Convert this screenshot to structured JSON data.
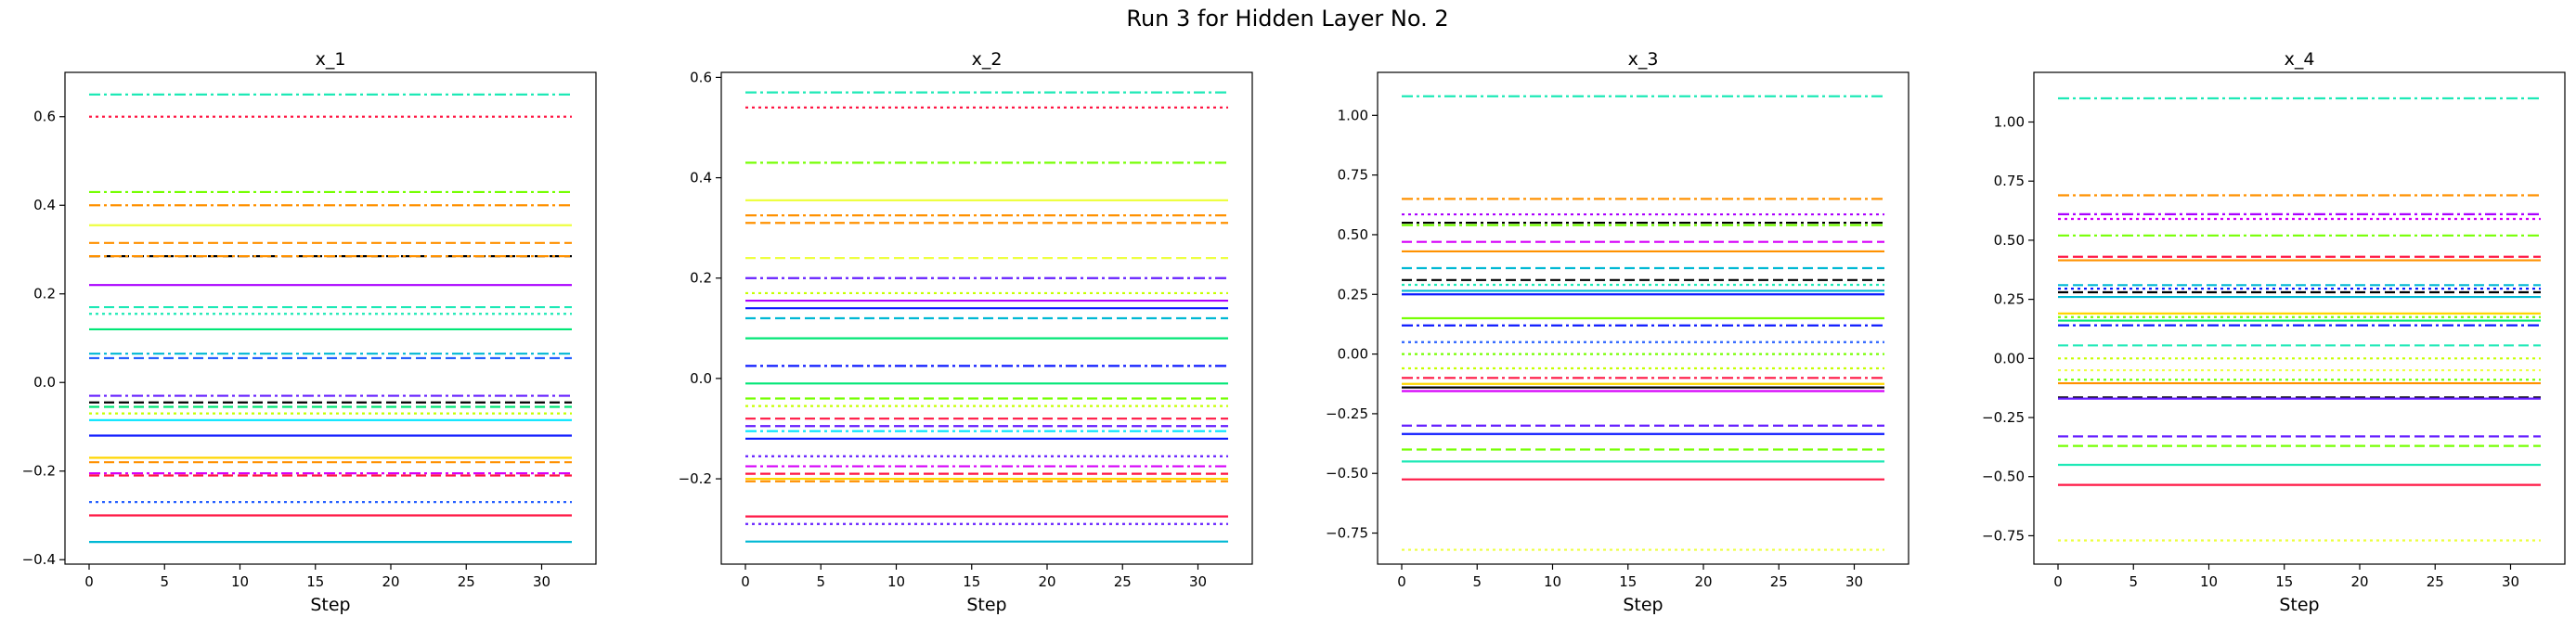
{
  "figure": {
    "title": "Run 3 for Hidden Layer No. 2"
  },
  "chart_data": [
    {
      "type": "line",
      "title": "x_1",
      "xlabel": "Step",
      "ylabel": "",
      "xlim": [
        -1.6,
        33.6
      ],
      "xticks": [
        0,
        5,
        10,
        15,
        20,
        25,
        30
      ],
      "ylim": [
        -0.41,
        0.7
      ],
      "yticks": [
        -0.4,
        -0.2,
        0.0,
        0.2,
        0.4,
        0.6
      ],
      "ytick_decimals": 1,
      "x_range": [
        0,
        32
      ],
      "grid": false,
      "series": [
        {
          "value": 0.65,
          "color": "#1de9b6",
          "style": "dashdot"
        },
        {
          "value": 0.6,
          "color": "#ff1744",
          "style": "dotted"
        },
        {
          "value": 0.43,
          "color": "#76ff03",
          "style": "dashdot"
        },
        {
          "value": 0.4,
          "color": "#ff9100",
          "style": "dashdot"
        },
        {
          "value": 0.355,
          "color": "#eeff41",
          "style": "solid"
        },
        {
          "value": 0.315,
          "color": "#ff9100",
          "style": "dashed"
        },
        {
          "value": 0.285,
          "color": "#000000",
          "style": "dashed"
        },
        {
          "value": 0.285,
          "color": "#ff9100",
          "style": "dashdot"
        },
        {
          "value": 0.22,
          "color": "#aa00ff",
          "style": "solid"
        },
        {
          "value": 0.17,
          "color": "#1de9b6",
          "style": "dashed"
        },
        {
          "value": 0.155,
          "color": "#1de9b6",
          "style": "dotted"
        },
        {
          "value": 0.12,
          "color": "#00e676",
          "style": "solid"
        },
        {
          "value": 0.065,
          "color": "#00b8d4",
          "style": "dashdot"
        },
        {
          "value": 0.055,
          "color": "#2962ff",
          "style": "dashed"
        },
        {
          "value": -0.03,
          "color": "#651fff",
          "style": "dashdot"
        },
        {
          "value": -0.045,
          "color": "#000000",
          "style": "dashed"
        },
        {
          "value": -0.055,
          "color": "#00e676",
          "style": "dashed"
        },
        {
          "value": -0.07,
          "color": "#c6ff00",
          "style": "dotted"
        },
        {
          "value": -0.085,
          "color": "#00e5ff",
          "style": "solid"
        },
        {
          "value": -0.12,
          "color": "#0d1aff",
          "style": "solid"
        },
        {
          "value": -0.17,
          "color": "#ffd600",
          "style": "solid"
        },
        {
          "value": -0.18,
          "color": "#ff9100",
          "style": "dashed"
        },
        {
          "value": -0.205,
          "color": "#d500f9",
          "style": "dashdot"
        },
        {
          "value": -0.21,
          "color": "#ff1744",
          "style": "dashed"
        },
        {
          "value": -0.27,
          "color": "#2962ff",
          "style": "dotted"
        },
        {
          "value": -0.3,
          "color": "#ff1744",
          "style": "solid"
        },
        {
          "value": -0.36,
          "color": "#00b8d4",
          "style": "solid"
        }
      ]
    },
    {
      "type": "line",
      "title": "x_2",
      "xlabel": "Step",
      "ylabel": "",
      "xlim": [
        -1.6,
        33.6
      ],
      "xticks": [
        0,
        5,
        10,
        15,
        20,
        25,
        30
      ],
      "ylim": [
        -0.37,
        0.61
      ],
      "yticks": [
        -0.2,
        0.0,
        0.2,
        0.4,
        0.6
      ],
      "ytick_decimals": 1,
      "x_range": [
        0,
        32
      ],
      "grid": false,
      "series": [
        {
          "value": 0.57,
          "color": "#1de9b6",
          "style": "dashdot"
        },
        {
          "value": 0.54,
          "color": "#ff1744",
          "style": "dotted"
        },
        {
          "value": 0.43,
          "color": "#76ff03",
          "style": "dashdot"
        },
        {
          "value": 0.355,
          "color": "#eeff41",
          "style": "solid"
        },
        {
          "value": 0.325,
          "color": "#ff9100",
          "style": "dashdot"
        },
        {
          "value": 0.31,
          "color": "#ff9100",
          "style": "dashed"
        },
        {
          "value": 0.24,
          "color": "#eeff41",
          "style": "dashed"
        },
        {
          "value": 0.2,
          "color": "#651fff",
          "style": "dashdot"
        },
        {
          "value": 0.17,
          "color": "#c6ff00",
          "style": "dotted"
        },
        {
          "value": 0.155,
          "color": "#aa00ff",
          "style": "solid"
        },
        {
          "value": 0.14,
          "color": "#0d1aff",
          "style": "solid"
        },
        {
          "value": 0.12,
          "color": "#00b8d4",
          "style": "dashed"
        },
        {
          "value": 0.08,
          "color": "#00e676",
          "style": "solid"
        },
        {
          "value": 0.025,
          "color": "#0d1aff",
          "style": "dashdot"
        },
        {
          "value": -0.01,
          "color": "#00e676",
          "style": "solid"
        },
        {
          "value": -0.04,
          "color": "#76ff03",
          "style": "dashed"
        },
        {
          "value": -0.055,
          "color": "#c6ff00",
          "style": "dotted"
        },
        {
          "value": -0.08,
          "color": "#ff1744",
          "style": "dashed"
        },
        {
          "value": -0.095,
          "color": "#651fff",
          "style": "dashed"
        },
        {
          "value": -0.105,
          "color": "#00e5ff",
          "style": "dashdot"
        },
        {
          "value": -0.12,
          "color": "#0d1aff",
          "style": "solid"
        },
        {
          "value": -0.155,
          "color": "#651fff",
          "style": "dotted"
        },
        {
          "value": -0.175,
          "color": "#d500f9",
          "style": "dashdot"
        },
        {
          "value": -0.19,
          "color": "#ff1744",
          "style": "dashed"
        },
        {
          "value": -0.2,
          "color": "#ffd600",
          "style": "solid"
        },
        {
          "value": -0.205,
          "color": "#ff9100",
          "style": "dashed"
        },
        {
          "value": -0.275,
          "color": "#ff1744",
          "style": "solid"
        },
        {
          "value": -0.29,
          "color": "#651fff",
          "style": "dotted"
        },
        {
          "value": -0.325,
          "color": "#00b8d4",
          "style": "solid"
        }
      ]
    },
    {
      "type": "line",
      "title": "x_3",
      "xlabel": "Step",
      "ylabel": "",
      "xlim": [
        -1.6,
        33.6
      ],
      "xticks": [
        0,
        5,
        10,
        15,
        20,
        25,
        30
      ],
      "ylim": [
        -0.88,
        1.18
      ],
      "yticks": [
        -0.75,
        -0.5,
        -0.25,
        0.0,
        0.25,
        0.5,
        0.75,
        1.0
      ],
      "ytick_decimals": 2,
      "x_range": [
        0,
        32
      ],
      "grid": false,
      "series": [
        {
          "value": 1.08,
          "color": "#1de9b6",
          "style": "dashdot"
        },
        {
          "value": 0.65,
          "color": "#ff9100",
          "style": "dashdot"
        },
        {
          "value": 0.585,
          "color": "#aa00ff",
          "style": "dotted"
        },
        {
          "value": 0.55,
          "color": "#000000",
          "style": "dashdot"
        },
        {
          "value": 0.54,
          "color": "#76ff03",
          "style": "dashdot"
        },
        {
          "value": 0.47,
          "color": "#d500f9",
          "style": "dashed"
        },
        {
          "value": 0.43,
          "color": "#ff9100",
          "style": "solid"
        },
        {
          "value": 0.36,
          "color": "#00b8d4",
          "style": "dashed"
        },
        {
          "value": 0.31,
          "color": "#000000",
          "style": "dashed"
        },
        {
          "value": 0.29,
          "color": "#1de9b6",
          "style": "dotted"
        },
        {
          "value": 0.265,
          "color": "#00b8d4",
          "style": "solid"
        },
        {
          "value": 0.25,
          "color": "#0d1aff",
          "style": "solid"
        },
        {
          "value": 0.15,
          "color": "#76ff03",
          "style": "solid"
        },
        {
          "value": 0.12,
          "color": "#0d1aff",
          "style": "dashdot"
        },
        {
          "value": 0.05,
          "color": "#2962ff",
          "style": "dotted"
        },
        {
          "value": 0.0,
          "color": "#76ff03",
          "style": "dotted"
        },
        {
          "value": -0.06,
          "color": "#c6ff00",
          "style": "dotted"
        },
        {
          "value": -0.1,
          "color": "#ff1744",
          "style": "dashdot"
        },
        {
          "value": -0.125,
          "color": "#ffd600",
          "style": "solid"
        },
        {
          "value": -0.14,
          "color": "#000000",
          "style": "solid"
        },
        {
          "value": -0.155,
          "color": "#d500f9",
          "style": "solid"
        },
        {
          "value": -0.3,
          "color": "#651fff",
          "style": "dashed"
        },
        {
          "value": -0.335,
          "color": "#0d1aff",
          "style": "solid"
        },
        {
          "value": -0.4,
          "color": "#76ff03",
          "style": "dashed"
        },
        {
          "value": -0.45,
          "color": "#1de9b6",
          "style": "solid"
        },
        {
          "value": -0.525,
          "color": "#ff1744",
          "style": "solid"
        },
        {
          "value": -0.82,
          "color": "#eeff41",
          "style": "dotted"
        }
      ]
    },
    {
      "type": "line",
      "title": "x_4",
      "xlabel": "Step",
      "ylabel": "",
      "xlim": [
        -1.6,
        33.6
      ],
      "xticks": [
        0,
        5,
        10,
        15,
        20,
        25,
        30
      ],
      "ylim": [
        -0.87,
        1.21
      ],
      "yticks": [
        -0.75,
        -0.5,
        -0.25,
        0.0,
        0.25,
        0.5,
        0.75,
        1.0
      ],
      "ytick_decimals": 2,
      "x_range": [
        0,
        32
      ],
      "grid": false,
      "series": [
        {
          "value": 1.1,
          "color": "#1de9b6",
          "style": "dashdot"
        },
        {
          "value": 0.69,
          "color": "#ff9100",
          "style": "dashdot"
        },
        {
          "value": 0.61,
          "color": "#aa00ff",
          "style": "dashdot"
        },
        {
          "value": 0.59,
          "color": "#d500f9",
          "style": "dotted"
        },
        {
          "value": 0.52,
          "color": "#76ff03",
          "style": "dashdot"
        },
        {
          "value": 0.43,
          "color": "#ff1744",
          "style": "dashed"
        },
        {
          "value": 0.415,
          "color": "#ff9100",
          "style": "solid"
        },
        {
          "value": 0.31,
          "color": "#00b8d4",
          "style": "dashed"
        },
        {
          "value": 0.295,
          "color": "#0d1aff",
          "style": "dotted"
        },
        {
          "value": 0.28,
          "color": "#000000",
          "style": "dashed"
        },
        {
          "value": 0.26,
          "color": "#00b8d4",
          "style": "solid"
        },
        {
          "value": 0.19,
          "color": "#ffd600",
          "style": "solid"
        },
        {
          "value": 0.175,
          "color": "#76ff03",
          "style": "dotted"
        },
        {
          "value": 0.16,
          "color": "#00e676",
          "style": "solid"
        },
        {
          "value": 0.14,
          "color": "#0d1aff",
          "style": "dashdot"
        },
        {
          "value": 0.055,
          "color": "#1de9b6",
          "style": "dashed"
        },
        {
          "value": 0.0,
          "color": "#c6ff00",
          "style": "dotted"
        },
        {
          "value": -0.05,
          "color": "#eeff41",
          "style": "dotted"
        },
        {
          "value": -0.09,
          "color": "#76ff03",
          "style": "dotted"
        },
        {
          "value": -0.105,
          "color": "#ff9100",
          "style": "solid"
        },
        {
          "value": -0.165,
          "color": "#000000",
          "style": "dashed"
        },
        {
          "value": -0.17,
          "color": "#651fff",
          "style": "solid"
        },
        {
          "value": -0.33,
          "color": "#651fff",
          "style": "dashed"
        },
        {
          "value": -0.37,
          "color": "#76ff03",
          "style": "dashed"
        },
        {
          "value": -0.45,
          "color": "#1de9b6",
          "style": "solid"
        },
        {
          "value": -0.535,
          "color": "#ff1744",
          "style": "solid"
        },
        {
          "value": -0.77,
          "color": "#eeff41",
          "style": "dotted"
        }
      ]
    }
  ]
}
